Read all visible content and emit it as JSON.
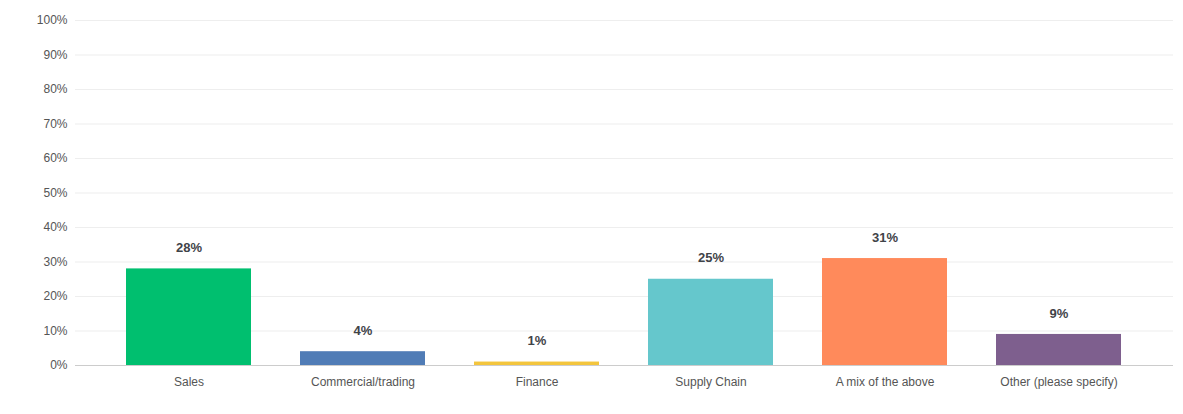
{
  "chart_data": {
    "type": "bar",
    "categories": [
      "Sales",
      "Commercial/trading",
      "Finance",
      "Supply Chain",
      "A mix of the above",
      "Other (please specify)"
    ],
    "values": [
      28,
      4,
      1,
      25,
      31,
      9
    ],
    "value_labels": [
      "28%",
      "4%",
      "1%",
      "25%",
      "31%",
      "9%"
    ],
    "colors": [
      "#00bf6f",
      "#507cb6",
      "#f3c53d",
      "#65c7cc",
      "#ff8a5b",
      "#7e5f8e"
    ],
    "ylim": [
      0,
      100
    ],
    "yticks": [
      {
        "value": 0,
        "label": "0%"
      },
      {
        "value": 10,
        "label": "10%"
      },
      {
        "value": 20,
        "label": "20%"
      },
      {
        "value": 30,
        "label": "30%"
      },
      {
        "value": 40,
        "label": "40%"
      },
      {
        "value": 50,
        "label": "50%"
      },
      {
        "value": 60,
        "label": "60%"
      },
      {
        "value": 70,
        "label": "70%"
      },
      {
        "value": 80,
        "label": "80%"
      },
      {
        "value": 90,
        "label": "90%"
      },
      {
        "value": 100,
        "label": "100%"
      }
    ],
    "grid": true,
    "data_labels": true
  }
}
